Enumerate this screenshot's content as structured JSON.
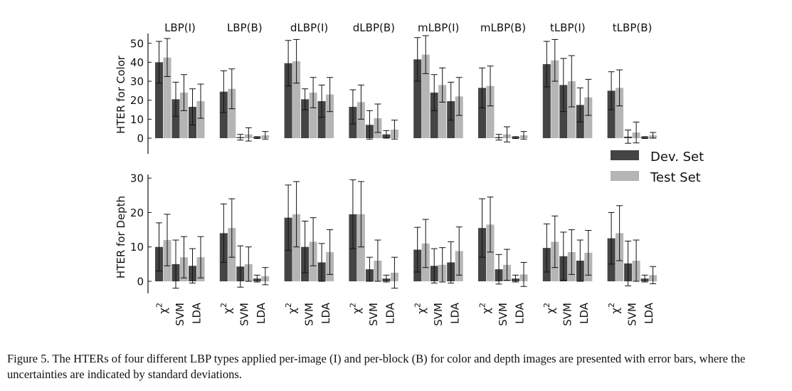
{
  "caption": "Figure 5. The HTERs of four different LBP types applied per-image (I) and per-block (B) for color and depth images are presented with error bars, where the uncertainties are indicated by standard deviations.",
  "chart_data": {
    "type": "bar",
    "groups": [
      "LBP(I)",
      "LBP(B)",
      "dLBP(I)",
      "dLBP(B)",
      "mLBP(I)",
      "mLBP(B)",
      "tLBP(I)",
      "tLBP(B)"
    ],
    "classifiers": [
      "χ2",
      "SVM",
      "LDA"
    ],
    "legend": {
      "position": "right",
      "entries": [
        "Dev. Set",
        "Test Set"
      ]
    },
    "colors": {
      "dev": "#444444",
      "test": "#b5b5b5"
    },
    "panels": [
      {
        "ylabel": "HTER for Color",
        "ylim": [
          0,
          55
        ],
        "yticks": [
          0,
          10,
          20,
          30,
          40,
          50
        ],
        "series": [
          {
            "name": "Dev. Set",
            "values": [
              [
                40,
                20.5,
                16.5
              ],
              [
                24.5,
                0.5,
                0.3
              ],
              [
                39.5,
                20.5,
                19.5
              ],
              [
                16.5,
                7,
                2
              ],
              [
                41.5,
                24,
                19.5
              ],
              [
                26.5,
                0.5,
                0.3
              ],
              [
                39,
                28,
                17.5
              ],
              [
                25,
                0.8,
                0.3
              ]
            ],
            "errors": [
              [
                11,
                9,
                9.5
              ],
              [
                11,
                1.5,
                0.5
              ],
              [
                12,
                5.5,
                8.5
              ],
              [
                9,
                7.5,
                2
              ],
              [
                11.5,
                9.5,
                10
              ],
              [
                10.5,
                1.5,
                0.5
              ],
              [
                12,
                14,
                9
              ],
              [
                10,
                3.5,
                0.5
              ]
            ]
          },
          {
            "name": "Test Set",
            "values": [
              [
                42.5,
                24,
                19.5
              ],
              [
                26,
                2,
                1.5
              ],
              [
                40.5,
                24,
                23
              ],
              [
                19,
                10.5,
                4.5
              ],
              [
                44,
                28,
                22
              ],
              [
                27.5,
                2,
                1.5
              ],
              [
                41,
                30,
                21.5
              ],
              [
                26.5,
                3,
                1.5
              ]
            ],
            "errors": [
              [
                10,
                9.5,
                9
              ],
              [
                10.5,
                3.5,
                2
              ],
              [
                11.5,
                8,
                9
              ],
              [
                9,
                7.5,
                5
              ],
              [
                10,
                9,
                10
              ],
              [
                10.5,
                4,
                2
              ],
              [
                11,
                13.5,
                9.5
              ],
              [
                9.5,
                5.5,
                1.5
              ]
            ]
          }
        ]
      },
      {
        "ylabel": "HTER for Depth",
        "ylim": [
          -4,
          31
        ],
        "yticks": [
          0,
          10,
          20,
          30
        ],
        "series": [
          {
            "name": "Dev. Set",
            "values": [
              [
                10,
                5,
                4.5
              ],
              [
                14,
                4.3,
                0.8
              ],
              [
                18.5,
                10,
                5.5
              ],
              [
                19.5,
                3.5,
                0.8
              ],
              [
                9.2,
                4.5,
                5.5
              ],
              [
                15.5,
                3.5,
                0.8
              ],
              [
                9.7,
                7.3,
                6
              ],
              [
                12.5,
                5.2,
                0.8
              ]
            ],
            "errors": [
              [
                7,
                7,
                5
              ],
              [
                8.5,
                6,
                1
              ],
              [
                9.5,
                7.5,
                5.5
              ],
              [
                10,
                3.5,
                1
              ],
              [
                6.5,
                5,
                6
              ],
              [
                8.5,
                4.3,
                1
              ],
              [
                7,
                7,
                6
              ],
              [
                7.5,
                6.5,
                1
              ]
            ]
          },
          {
            "name": "Test Set",
            "values": [
              [
                12,
                7,
                7
              ],
              [
                15.5,
                5,
                1.5
              ],
              [
                19.5,
                11.5,
                8.5
              ],
              [
                19.5,
                6,
                2.5
              ],
              [
                11,
                4.8,
                8.8
              ],
              [
                16.5,
                4.8,
                2
              ],
              [
                11.5,
                8.5,
                8.3
              ],
              [
                14,
                6,
                1.8
              ]
            ],
            "errors": [
              [
                7.5,
                6,
                6
              ],
              [
                8.5,
                5,
                2.5
              ],
              [
                9.5,
                7,
                6.5
              ],
              [
                9.5,
                6,
                4.5
              ],
              [
                7,
                5,
                7
              ],
              [
                8,
                4.5,
                3.5
              ],
              [
                7.5,
                6.5,
                6.5
              ],
              [
                8,
                6,
                2.5
              ]
            ]
          }
        ]
      }
    ]
  }
}
